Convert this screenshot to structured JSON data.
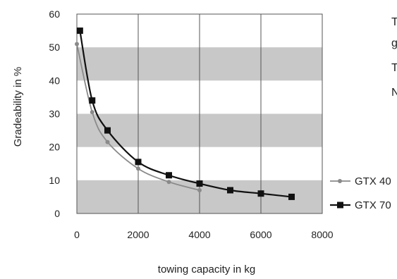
{
  "chart_data": {
    "type": "line",
    "title": "",
    "xlabel": "towing capacity in kg",
    "ylabel": "Gradeability in %",
    "xlim": [
      0,
      8000
    ],
    "ylim": [
      0,
      60
    ],
    "xticks": [
      0,
      2000,
      4000,
      6000,
      8000
    ],
    "yticks": [
      0,
      10,
      20,
      30,
      40,
      50,
      60
    ],
    "x_tick_labels": [
      "0",
      "2000",
      "4000",
      "6000",
      "8000"
    ],
    "y_tick_labels": [
      "0",
      "10",
      "20",
      "30",
      "40",
      "50",
      "60"
    ],
    "grid": {
      "vertical_lines": true,
      "horizontal_bands": [
        [
          0,
          10
        ],
        [
          20,
          30
        ],
        [
          40,
          50
        ]
      ],
      "band_color": "#c8c8c8"
    },
    "legend_position": "right",
    "series": [
      {
        "name": "GTX 40",
        "color": "#8a8a8a",
        "marker": "circle",
        "x": [
          0,
          500,
          1000,
          2000,
          3000,
          4000
        ],
        "y": [
          51,
          30.5,
          21.5,
          13.5,
          9.5,
          7
        ]
      },
      {
        "name": "GTX 70",
        "color": "#111111",
        "marker": "square",
        "x": [
          100,
          500,
          1000,
          2000,
          3000,
          4000,
          5000,
          6000,
          7000
        ],
        "y": [
          55,
          34,
          25,
          15.5,
          11.5,
          9,
          7,
          6,
          5
        ]
      }
    ]
  },
  "side_text": [
    "T",
    "g",
    "T",
    "N"
  ]
}
